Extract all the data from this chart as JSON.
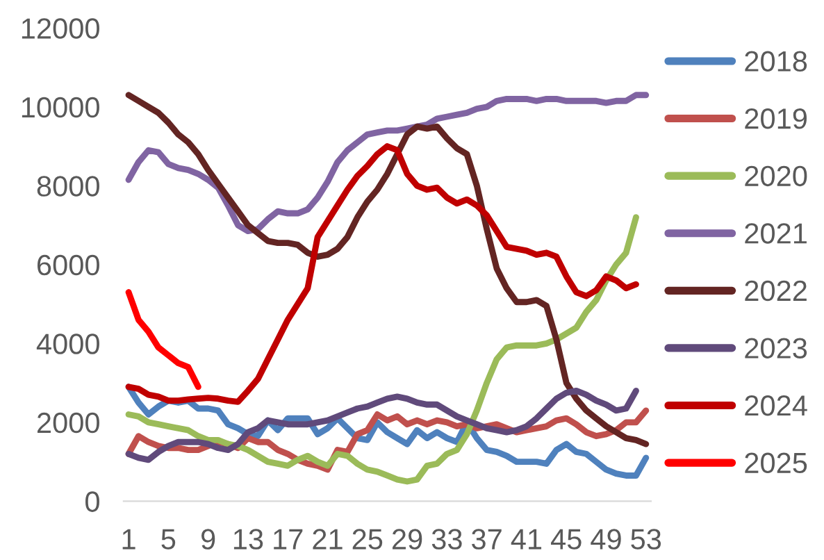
{
  "chart_data": {
    "type": "line",
    "categories": [
      "1",
      null,
      null,
      null,
      "5",
      null,
      null,
      null,
      "9",
      null,
      null,
      null,
      "13",
      null,
      null,
      null,
      "17",
      null,
      null,
      null,
      "21",
      null,
      null,
      null,
      "25",
      null,
      null,
      null,
      "29",
      null,
      null,
      null,
      "33",
      null,
      null,
      null,
      "37",
      null,
      null,
      null,
      "41",
      null,
      null,
      null,
      "45",
      null,
      null,
      null,
      "49",
      null,
      null,
      null,
      "53"
    ],
    "ylim": [
      0,
      12000
    ],
    "yticks": [
      0,
      2000,
      4000,
      6000,
      8000,
      10000,
      12000
    ],
    "grid": false,
    "legend": "right",
    "marker": "none",
    "line_style": "solid",
    "series": [
      {
        "name": "2018",
        "color": "#4f81bd",
        "values": [
          2900,
          2500,
          2200,
          2400,
          2550,
          2500,
          2550,
          2350,
          2350,
          2300,
          1950,
          1850,
          1700,
          1650,
          2050,
          1800,
          2100,
          2100,
          2100,
          1700,
          1850,
          2100,
          1850,
          1600,
          1550,
          2000,
          1750,
          1600,
          1450,
          1800,
          1600,
          1750,
          1600,
          1500,
          2000,
          1600,
          1300,
          1250,
          1150,
          1000,
          1000,
          1000,
          950,
          1300,
          1450,
          1250,
          1200,
          1000,
          800,
          700,
          650,
          650,
          1100
        ]
      },
      {
        "name": "2019",
        "color": "#c0504d",
        "values": [
          1200,
          1650,
          1500,
          1400,
          1350,
          1350,
          1300,
          1300,
          1400,
          1500,
          1450,
          1350,
          1600,
          1500,
          1500,
          1300,
          1200,
          1050,
          950,
          900,
          800,
          1300,
          1250,
          1700,
          1800,
          2200,
          2050,
          2150,
          1950,
          2050,
          1950,
          2050,
          2000,
          1900,
          1950,
          1850,
          1900,
          1950,
          1850,
          1750,
          1800,
          1850,
          1900,
          2050,
          2100,
          1950,
          1750,
          1650,
          1700,
          1800,
          2000,
          2000,
          2300
        ]
      },
      {
        "name": "2020",
        "color": "#9bbb59",
        "values": [
          2200,
          2150,
          2000,
          1950,
          1900,
          1850,
          1800,
          1650,
          1550,
          1550,
          1450,
          1400,
          1300,
          1150,
          1000,
          950,
          900,
          1050,
          1150,
          1000,
          900,
          1200,
          1150,
          950,
          800,
          750,
          650,
          550,
          500,
          550,
          900,
          950,
          1200,
          1300,
          1700,
          2300,
          3000,
          3600,
          3900,
          3950,
          3950,
          3950,
          4000,
          4100,
          4250,
          4400,
          4800,
          5100,
          5600,
          6000,
          6300,
          7200,
          null
        ]
      },
      {
        "name": "2021",
        "color": "#8064a2",
        "values": [
          8150,
          8600,
          8900,
          8850,
          8550,
          8450,
          8400,
          8300,
          8150,
          7950,
          7500,
          7000,
          6850,
          6900,
          7150,
          7350,
          7300,
          7300,
          7400,
          7700,
          8100,
          8600,
          8900,
          9100,
          9300,
          9350,
          9400,
          9400,
          9450,
          9500,
          9550,
          9700,
          9750,
          9800,
          9850,
          9950,
          10000,
          10150,
          10200,
          10200,
          10200,
          10150,
          10200,
          10200,
          10150,
          10150,
          10150,
          10150,
          10100,
          10150,
          10150,
          10300,
          10300
        ]
      },
      {
        "name": "2022",
        "color": "#632523",
        "values": [
          10300,
          10150,
          10000,
          9850,
          9600,
          9300,
          9100,
          8800,
          8400,
          8050,
          7700,
          7350,
          7000,
          6800,
          6600,
          6550,
          6550,
          6500,
          6300,
          6200,
          6250,
          6400,
          6700,
          7200,
          7600,
          7900,
          8300,
          8800,
          9300,
          9500,
          9450,
          9500,
          9200,
          8950,
          8800,
          8000,
          6900,
          5900,
          5400,
          5050,
          5050,
          5100,
          4950,
          4100,
          3000,
          2600,
          2300,
          2100,
          1900,
          1750,
          1600,
          1550,
          1450
        ]
      },
      {
        "name": "2023",
        "color": "#604a7b",
        "values": [
          1200,
          1100,
          1050,
          1250,
          1400,
          1500,
          1500,
          1500,
          1450,
          1350,
          1300,
          1450,
          1750,
          1850,
          2050,
          2000,
          1950,
          1950,
          1950,
          2000,
          2050,
          2150,
          2250,
          2350,
          2400,
          2500,
          2600,
          2650,
          2600,
          2500,
          2450,
          2450,
          2300,
          2150,
          2050,
          1950,
          1850,
          1800,
          1750,
          1800,
          1900,
          2100,
          2350,
          2600,
          2750,
          2800,
          2700,
          2550,
          2450,
          2300,
          2350,
          2800,
          null
        ]
      },
      {
        "name": "2024",
        "color": "#c00000",
        "values": [
          2900,
          2850,
          2700,
          2650,
          2550,
          2550,
          2580,
          2600,
          2620,
          2600,
          2550,
          2520,
          2800,
          3100,
          3600,
          4100,
          4600,
          5000,
          5400,
          6700,
          7100,
          7500,
          7900,
          8250,
          8500,
          8800,
          9000,
          8900,
          8300,
          8000,
          7900,
          7950,
          7700,
          7550,
          7650,
          7500,
          7250,
          6850,
          6450,
          6400,
          6350,
          6250,
          6300,
          6200,
          5700,
          5300,
          5200,
          5350,
          5700,
          5600,
          5400,
          5500,
          null
        ]
      },
      {
        "name": "2025",
        "color": "#ff0000",
        "values": [
          5300,
          4600,
          4300,
          3900,
          3700,
          3500,
          3400,
          2900,
          null,
          null,
          null,
          null,
          null,
          null,
          null,
          null,
          null,
          null,
          null,
          null,
          null,
          null,
          null,
          null,
          null,
          null,
          null,
          null,
          null,
          null,
          null,
          null,
          null,
          null,
          null,
          null,
          null,
          null,
          null,
          null,
          null,
          null,
          null,
          null,
          null,
          null,
          null,
          null,
          null,
          null,
          null,
          null,
          null
        ]
      }
    ]
  }
}
